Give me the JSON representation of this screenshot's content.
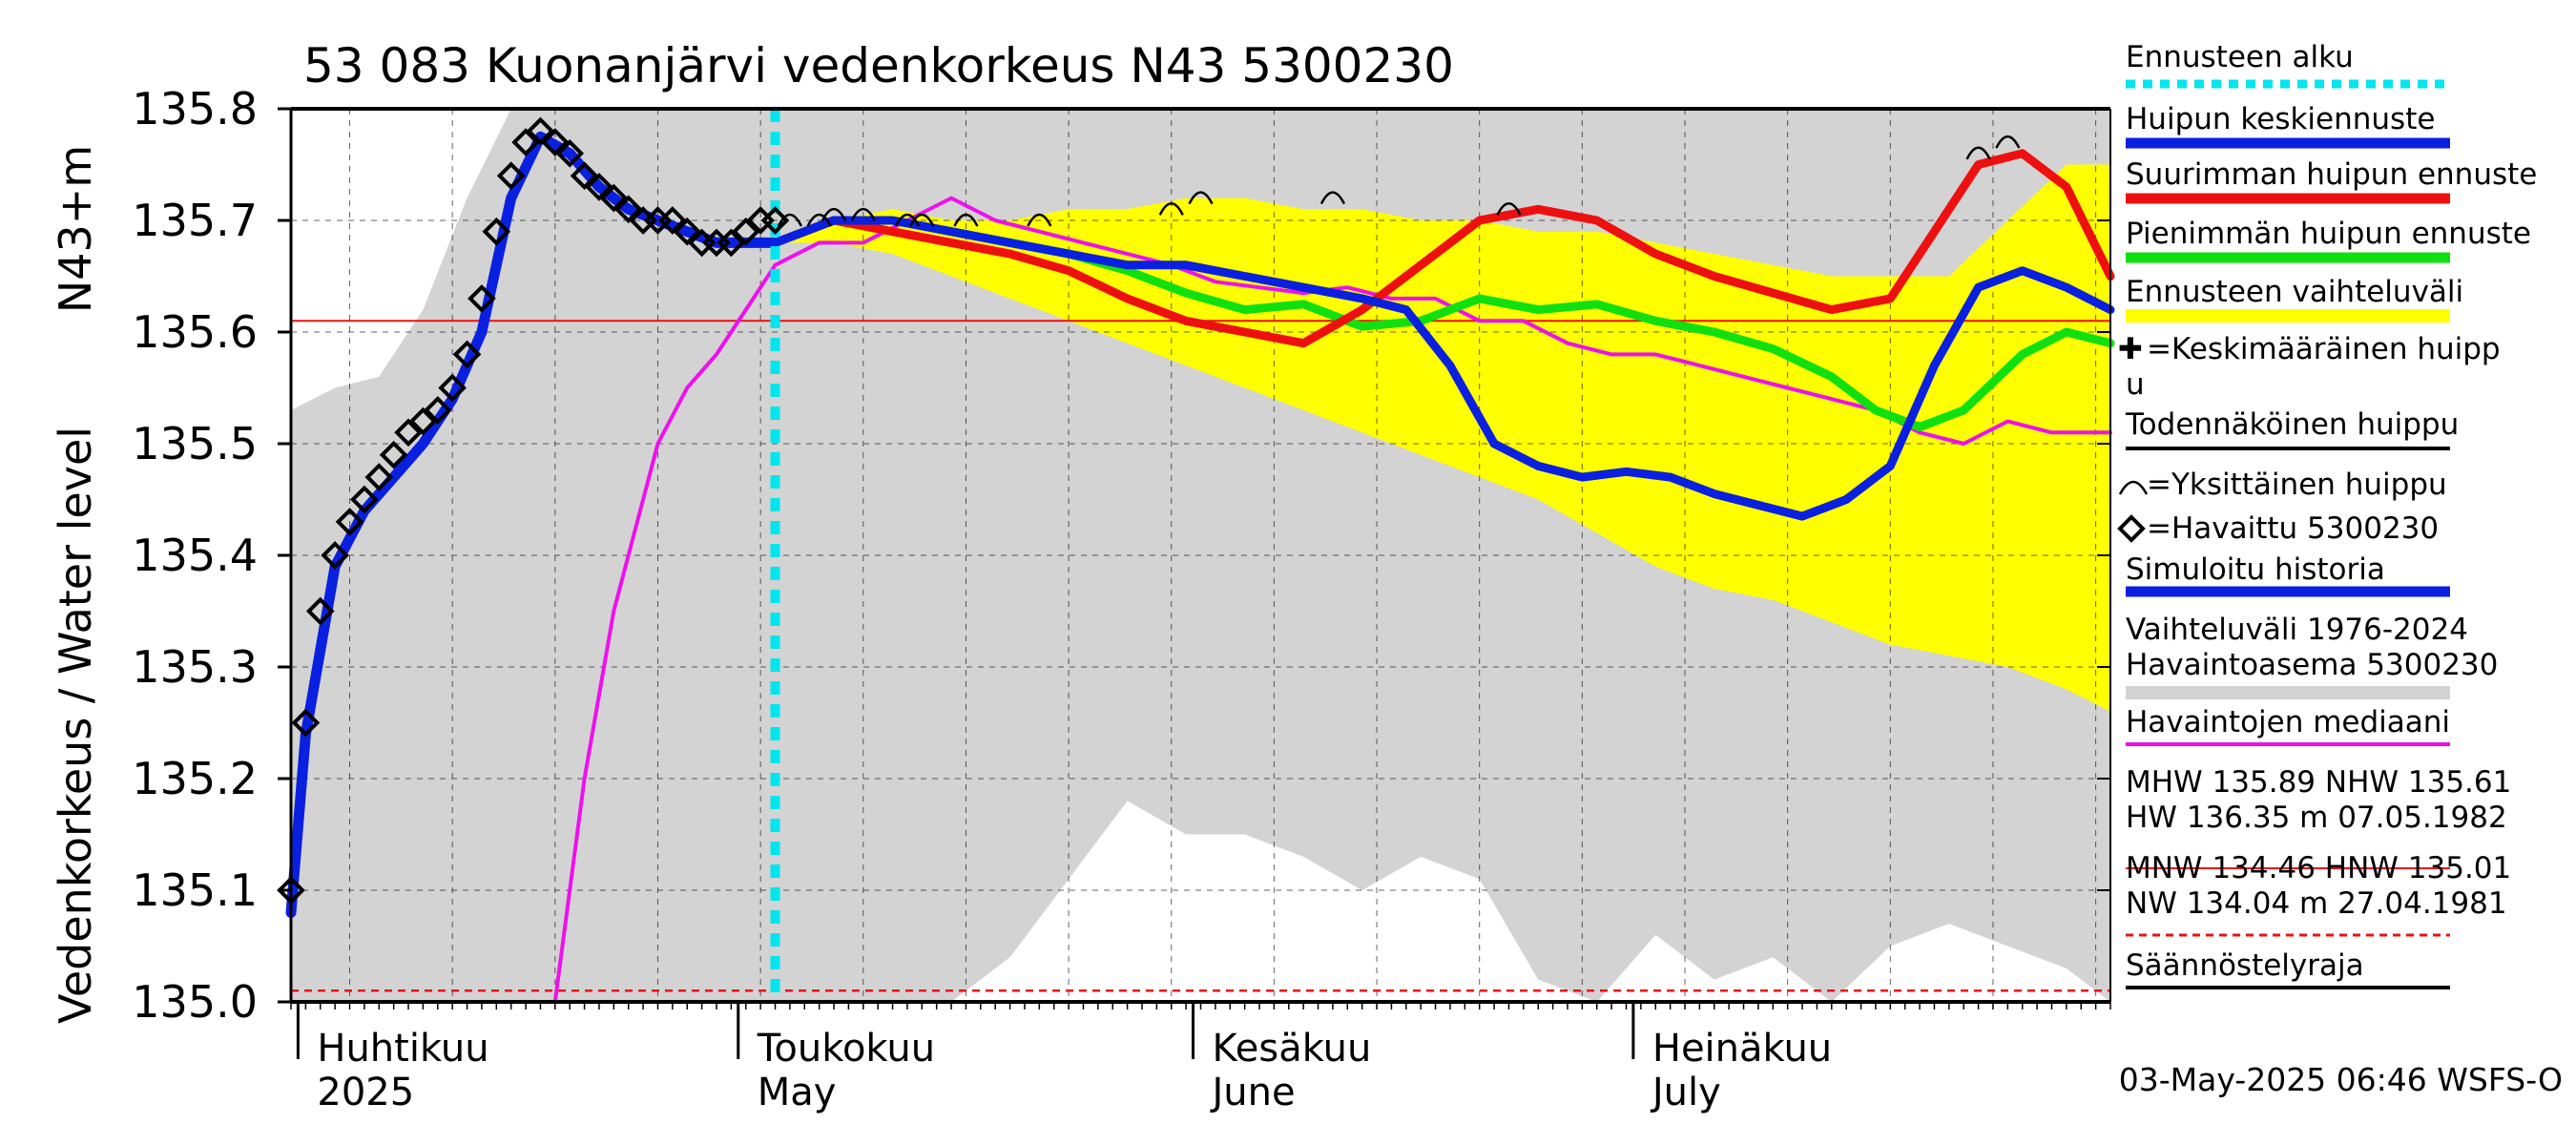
{
  "chart_data": {
    "type": "line",
    "title": "53 083 Kuonanjärvi vedenkorkeus N43 5300230",
    "ylabel_left": "Vedenkorkeus / Water level",
    "ylabel_unit": "N43+m",
    "ylim": [
      135.0,
      135.8
    ],
    "yticks": [
      "135.0",
      "135.1",
      "135.2",
      "135.3",
      "135.4",
      "135.5",
      "135.6",
      "135.7",
      "135.8"
    ],
    "xlim": [
      "2025-03-31",
      "2025-08-02"
    ],
    "xticks": [
      {
        "date": "2025-04-01",
        "label1": "Huhtikuu",
        "label2": "2025"
      },
      {
        "date": "2025-05-01",
        "label1": "Toukokuu",
        "label2": "May"
      },
      {
        "date": "2025-06-01",
        "label1": "Kesäkuu",
        "label2": "June"
      },
      {
        "date": "2025-07-01",
        "label1": "Heinäkuu",
        "label2": "July"
      }
    ],
    "forecast_start": "2025-05-03",
    "reference_line": 135.61,
    "regulation_limit": 135.01,
    "history_band": {
      "name": "Vaihteluväli 1976-2024 Havaintoasema 5300230",
      "x": [
        "2025-03-31",
        "2025-04-03",
        "2025-04-06",
        "2025-04-09",
        "2025-04-12",
        "2025-04-15",
        "2025-04-18",
        "2025-04-21",
        "2025-04-24",
        "2025-04-27",
        "2025-04-30",
        "2025-05-03",
        "2025-05-07",
        "2025-05-11",
        "2025-05-15",
        "2025-05-19",
        "2025-05-23",
        "2025-05-27",
        "2025-05-31",
        "2025-06-04",
        "2025-06-08",
        "2025-06-12",
        "2025-06-16",
        "2025-06-20",
        "2025-06-24",
        "2025-06-28",
        "2025-07-02",
        "2025-07-06",
        "2025-07-10",
        "2025-07-14",
        "2025-07-18",
        "2025-07-22",
        "2025-07-26",
        "2025-07-30",
        "2025-08-02"
      ],
      "upper": [
        135.53,
        135.55,
        135.56,
        135.62,
        135.72,
        135.8,
        135.8,
        135.8,
        135.8,
        135.8,
        135.8,
        135.8,
        135.8,
        135.8,
        135.8,
        135.8,
        135.8,
        135.8,
        135.8,
        135.8,
        135.8,
        135.8,
        135.8,
        135.8,
        135.8,
        135.8,
        135.8,
        135.8,
        135.8,
        135.8,
        135.8,
        135.8,
        135.8,
        135.8,
        135.8
      ],
      "lower": [
        135.0,
        135.0,
        135.0,
        135.0,
        135.0,
        135.0,
        135.0,
        135.0,
        135.0,
        135.0,
        135.0,
        135.0,
        135.0,
        135.0,
        135.0,
        135.04,
        135.11,
        135.18,
        135.15,
        135.15,
        135.13,
        135.1,
        135.13,
        135.11,
        135.02,
        135.0,
        135.06,
        135.02,
        135.04,
        135.0,
        135.05,
        135.07,
        135.05,
        135.03,
        135.0
      ]
    },
    "forecast_band": {
      "name": "Ennusteen vaihteluväli",
      "x": [
        "2025-05-03",
        "2025-05-07",
        "2025-05-11",
        "2025-05-15",
        "2025-05-19",
        "2025-05-23",
        "2025-05-27",
        "2025-05-31",
        "2025-06-04",
        "2025-06-08",
        "2025-06-12",
        "2025-06-16",
        "2025-06-20",
        "2025-06-24",
        "2025-06-28",
        "2025-07-02",
        "2025-07-06",
        "2025-07-10",
        "2025-07-14",
        "2025-07-18",
        "2025-07-22",
        "2025-07-26",
        "2025-07-30",
        "2025-08-02"
      ],
      "upper": [
        135.68,
        135.7,
        135.71,
        135.7,
        135.7,
        135.71,
        135.71,
        135.72,
        135.72,
        135.71,
        135.71,
        135.7,
        135.7,
        135.69,
        135.69,
        135.68,
        135.67,
        135.66,
        135.65,
        135.65,
        135.65,
        135.7,
        135.75,
        135.75
      ],
      "lower": [
        135.68,
        135.68,
        135.67,
        135.65,
        135.63,
        135.61,
        135.59,
        135.57,
        135.55,
        135.53,
        135.51,
        135.49,
        135.47,
        135.45,
        135.42,
        135.39,
        135.37,
        135.36,
        135.34,
        135.32,
        135.31,
        135.3,
        135.28,
        135.26
      ]
    },
    "series": [
      {
        "name": "Huipun keskiennuste",
        "color": "#0a20e0",
        "x": [
          "2025-05-03",
          "2025-05-07",
          "2025-05-11",
          "2025-05-15",
          "2025-05-19",
          "2025-05-23",
          "2025-05-27",
          "2025-05-31",
          "2025-06-04",
          "2025-06-08",
          "2025-06-12",
          "2025-06-15",
          "2025-06-18",
          "2025-06-21",
          "2025-06-24",
          "2025-06-27",
          "2025-06-30",
          "2025-07-03",
          "2025-07-06",
          "2025-07-09",
          "2025-07-12",
          "2025-07-15",
          "2025-07-18",
          "2025-07-21",
          "2025-07-24",
          "2025-07-27",
          "2025-07-30",
          "2025-08-02"
        ],
        "values": [
          135.68,
          135.7,
          135.7,
          135.69,
          135.68,
          135.67,
          135.66,
          135.66,
          135.65,
          135.64,
          135.63,
          135.62,
          135.57,
          135.5,
          135.48,
          135.47,
          135.475,
          135.47,
          135.455,
          135.445,
          135.435,
          135.45,
          135.48,
          135.57,
          135.64,
          135.655,
          135.64,
          135.62
        ]
      },
      {
        "name": "Suurimman huipun ennuste",
        "color": "#ee1010",
        "x": [
          "2025-05-03",
          "2025-05-07",
          "2025-05-11",
          "2025-05-15",
          "2025-05-19",
          "2025-05-23",
          "2025-05-27",
          "2025-05-31",
          "2025-06-04",
          "2025-06-08",
          "2025-06-12",
          "2025-06-16",
          "2025-06-20",
          "2025-06-24",
          "2025-06-28",
          "2025-07-02",
          "2025-07-06",
          "2025-07-10",
          "2025-07-14",
          "2025-07-18",
          "2025-07-21",
          "2025-07-24",
          "2025-07-27",
          "2025-07-30",
          "2025-08-02"
        ],
        "values": [
          135.68,
          135.7,
          135.69,
          135.68,
          135.67,
          135.655,
          135.63,
          135.61,
          135.6,
          135.59,
          135.62,
          135.66,
          135.7,
          135.71,
          135.7,
          135.67,
          135.65,
          135.635,
          135.62,
          135.63,
          135.69,
          135.75,
          135.76,
          135.73,
          135.65
        ]
      },
      {
        "name": "Pienimmän huipun ennuste",
        "color": "#10e010",
        "x": [
          "2025-05-03",
          "2025-05-07",
          "2025-05-11",
          "2025-05-15",
          "2025-05-19",
          "2025-05-23",
          "2025-05-27",
          "2025-05-31",
          "2025-06-04",
          "2025-06-08",
          "2025-06-12",
          "2025-06-16",
          "2025-06-20",
          "2025-06-24",
          "2025-06-28",
          "2025-07-02",
          "2025-07-06",
          "2025-07-10",
          "2025-07-14",
          "2025-07-17",
          "2025-07-20",
          "2025-07-23",
          "2025-07-27",
          "2025-07-30",
          "2025-08-02"
        ],
        "values": [
          135.68,
          135.7,
          135.7,
          135.69,
          135.68,
          135.67,
          135.655,
          135.635,
          135.62,
          135.625,
          135.605,
          135.61,
          135.63,
          135.62,
          135.625,
          135.61,
          135.6,
          135.585,
          135.56,
          135.53,
          135.515,
          135.53,
          135.58,
          135.6,
          135.59
        ]
      },
      {
        "name": "Havaintojen mediaani",
        "color": "#ee10ee",
        "x": [
          "2025-04-18",
          "2025-04-20",
          "2025-04-22",
          "2025-04-25",
          "2025-04-27",
          "2025-04-29",
          "2025-05-01",
          "2025-05-03",
          "2025-05-06",
          "2025-05-09",
          "2025-05-12",
          "2025-05-15",
          "2025-05-18",
          "2025-05-21",
          "2025-05-24",
          "2025-05-27",
          "2025-05-30",
          "2025-06-02",
          "2025-06-05",
          "2025-06-08",
          "2025-06-11",
          "2025-06-14",
          "2025-06-17",
          "2025-06-20",
          "2025-06-23",
          "2025-06-26",
          "2025-06-29",
          "2025-07-02",
          "2025-07-05",
          "2025-07-08",
          "2025-07-11",
          "2025-07-14",
          "2025-07-17",
          "2025-07-20",
          "2025-07-23",
          "2025-07-26",
          "2025-07-29",
          "2025-08-02"
        ],
        "values": [
          135.0,
          135.2,
          135.35,
          135.5,
          135.55,
          135.58,
          135.62,
          135.66,
          135.68,
          135.68,
          135.7,
          135.72,
          135.7,
          135.69,
          135.68,
          135.67,
          135.66,
          135.645,
          135.64,
          135.635,
          135.64,
          135.63,
          135.63,
          135.61,
          135.61,
          135.59,
          135.58,
          135.58,
          135.57,
          135.56,
          135.55,
          135.54,
          135.53,
          135.51,
          135.5,
          135.52,
          135.51,
          135.51
        ]
      },
      {
        "name": "Simuloitu historia",
        "color": "#0a20e0",
        "x": [
          "2025-03-31",
          "2025-04-01",
          "2025-04-03",
          "2025-04-05",
          "2025-04-07",
          "2025-04-09",
          "2025-04-11",
          "2025-04-13",
          "2025-04-15",
          "2025-04-17",
          "2025-04-19",
          "2025-04-21",
          "2025-04-23",
          "2025-04-25",
          "2025-04-27",
          "2025-04-29",
          "2025-05-01",
          "2025-05-03"
        ],
        "values": [
          135.08,
          135.24,
          135.39,
          135.44,
          135.47,
          135.5,
          135.54,
          135.6,
          135.72,
          135.775,
          135.76,
          135.73,
          135.71,
          135.7,
          135.69,
          135.68,
          135.68,
          135.68
        ]
      }
    ],
    "observed": {
      "name": "Havaittu 5300230",
      "x": [
        "2025-03-31",
        "2025-04-01",
        "2025-04-02",
        "2025-04-03",
        "2025-04-04",
        "2025-04-05",
        "2025-04-06",
        "2025-04-07",
        "2025-04-08",
        "2025-04-09",
        "2025-04-10",
        "2025-04-11",
        "2025-04-12",
        "2025-04-13",
        "2025-04-14",
        "2025-04-15",
        "2025-04-16",
        "2025-04-17",
        "2025-04-18",
        "2025-04-19",
        "2025-04-20",
        "2025-04-21",
        "2025-04-22",
        "2025-04-23",
        "2025-04-24",
        "2025-04-25",
        "2025-04-26",
        "2025-04-27",
        "2025-04-28",
        "2025-04-29",
        "2025-04-30",
        "2025-05-01",
        "2025-05-02",
        "2025-05-03"
      ],
      "values": [
        135.1,
        135.25,
        135.35,
        135.4,
        135.43,
        135.45,
        135.47,
        135.49,
        135.51,
        135.52,
        135.53,
        135.55,
        135.58,
        135.63,
        135.69,
        135.74,
        135.77,
        135.78,
        135.77,
        135.76,
        135.74,
        135.73,
        135.72,
        135.71,
        135.7,
        135.7,
        135.7,
        135.69,
        135.68,
        135.68,
        135.68,
        135.69,
        135.7,
        135.7
      ]
    },
    "single_peaks": {
      "name": "Yksittäinen huippu",
      "x": [
        "2025-05-04",
        "2025-05-06",
        "2025-05-07",
        "2025-05-09",
        "2025-05-12",
        "2025-05-13",
        "2025-05-16",
        "2025-05-21",
        "2025-05-30",
        "2025-06-01",
        "2025-06-10",
        "2025-06-22",
        "2025-07-24",
        "2025-07-26"
      ],
      "values": [
        135.7,
        135.7,
        135.705,
        135.705,
        135.7,
        135.7,
        135.7,
        135.7,
        135.71,
        135.72,
        135.72,
        135.71,
        135.76,
        135.77
      ]
    },
    "legend": [
      {
        "label": "Ennusteen alku",
        "style": "dotted-cyan"
      },
      {
        "label": "Huipun keskiennuste",
        "style": "blue"
      },
      {
        "label": "Suurimman huipun ennuste",
        "style": "red"
      },
      {
        "label": "Pienimmän huipun ennuste",
        "style": "green"
      },
      {
        "label": "Ennusteen vaihteluväli",
        "style": "yellow"
      },
      {
        "label": "=Keskimääräinen huipp",
        "label2": "u",
        "style": "plus"
      },
      {
        "label": "Todennäköinen huippu",
        "style": "black"
      },
      {
        "label": "=Yksittäinen huippu",
        "style": "arc"
      },
      {
        "label": "=Havaittu 5300230",
        "style": "diamond"
      },
      {
        "label": "Simuloitu historia",
        "style": "blue"
      },
      {
        "label": "Vaihteluväli 1976-2024",
        "label2": " Havaintoasema 5300230",
        "style": "gray"
      },
      {
        "label": "Havaintojen mediaani",
        "style": "magenta"
      },
      {
        "label": "MHW 135.89 NHW 135.61",
        "label2": "HW 136.35 m 07.05.1982",
        "style": "thin-red"
      },
      {
        "label": "MNW 134.46 HNW 135.01",
        "label2": "NW 134.04 m 27.04.1981",
        "style": "dashed-red"
      },
      {
        "label": "Säännöstelyraja",
        "style": "black"
      }
    ],
    "footer": "03-May-2025 06:46 WSFS-O",
    "colors": {
      "gray_band": "#d3d3d3",
      "yellow_band": "#ffff00",
      "cyan": "#00e5ee",
      "red": "#ee1010",
      "blue": "#0a20e0",
      "green": "#10e010",
      "magenta": "#ee10ee"
    }
  }
}
